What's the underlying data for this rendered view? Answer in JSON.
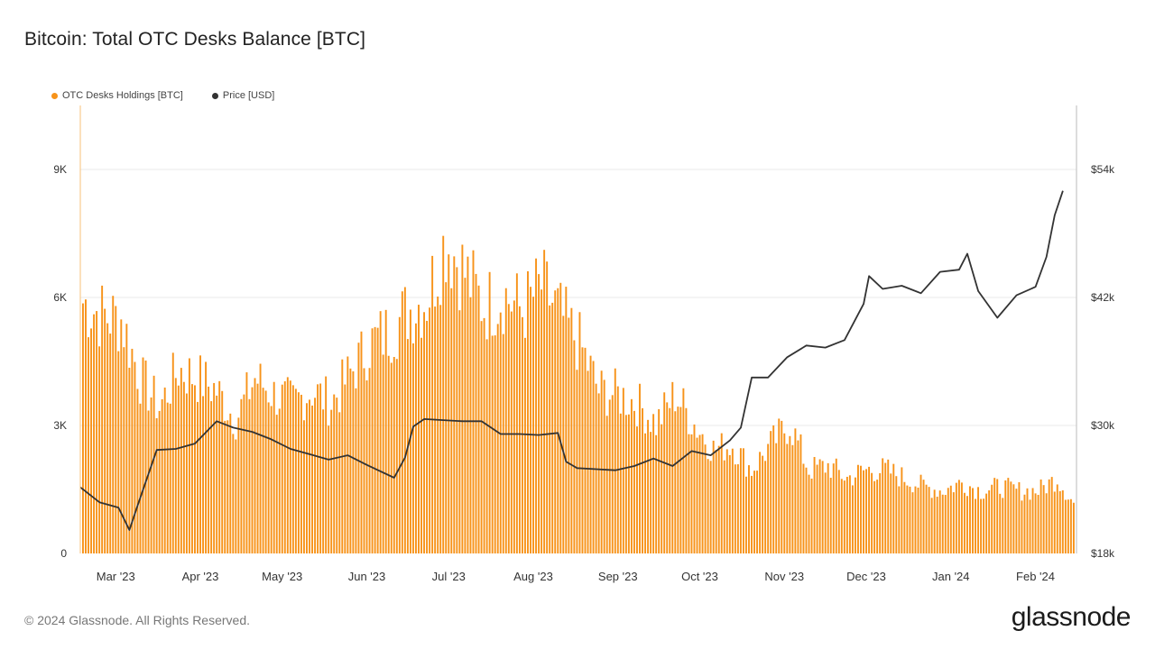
{
  "title": "Bitcoin: Total OTC Desks Balance [BTC]",
  "footer": "© 2024 Glassnode. All Rights Reserved.",
  "brand": "glassnode",
  "colors": {
    "holdings": "#F7931A",
    "price": "#333333",
    "grid": "#e9e9e9"
  },
  "chart_data": {
    "type": "bar",
    "title": "Bitcoin: Total OTC Desks Balance [BTC]",
    "legend_placement": "top-left",
    "grid": true,
    "x_ticks": [
      "Mar '23",
      "Apr '23",
      "May '23",
      "Jun '23",
      "Jul '23",
      "Aug '23",
      "Sep '23",
      "Oct '23",
      "Nov '23",
      "Dec '23",
      "Jan '24",
      "Feb '24"
    ],
    "y_left": {
      "label": "",
      "range": [
        0,
        10500
      ],
      "ticks": [
        "0",
        "3K",
        "6K",
        "9K"
      ],
      "tick_values": [
        0,
        3000,
        6000,
        9000
      ]
    },
    "y_right": {
      "label": "",
      "range": [
        18000,
        60000
      ],
      "ticks": [
        "$18k",
        "$30k",
        "$42k",
        "$54k"
      ],
      "tick_values": [
        18000,
        30000,
        42000,
        54000
      ]
    },
    "series": [
      {
        "name": "OTC Desks Holdings [BTC]",
        "type": "bar",
        "axis": "left",
        "x": [
          "2023-02-20",
          "2023-02-27",
          "2023-03-06",
          "2023-03-13",
          "2023-03-20",
          "2023-03-27",
          "2023-04-03",
          "2023-04-10",
          "2023-04-17",
          "2023-04-24",
          "2023-05-01",
          "2023-05-08",
          "2023-05-15",
          "2023-05-22",
          "2023-05-29",
          "2023-06-05",
          "2023-06-12",
          "2023-06-19",
          "2023-06-26",
          "2023-07-03",
          "2023-07-10",
          "2023-07-17",
          "2023-07-24",
          "2023-07-31",
          "2023-08-07",
          "2023-08-14",
          "2023-08-21",
          "2023-08-28",
          "2023-09-04",
          "2023-09-11",
          "2023-09-18",
          "2023-09-25",
          "2023-10-02",
          "2023-10-09",
          "2023-10-16",
          "2023-10-23",
          "2023-10-30",
          "2023-11-06",
          "2023-11-13",
          "2023-11-20",
          "2023-11-27",
          "2023-12-04",
          "2023-12-11",
          "2023-12-18",
          "2023-12-25",
          "2024-01-01",
          "2024-01-08",
          "2024-01-15",
          "2024-01-22",
          "2024-01-29",
          "2024-02-05",
          "2024-02-12",
          "2024-02-19"
        ],
        "values": [
          6000,
          5700,
          5600,
          4200,
          3500,
          4400,
          4200,
          3900,
          3200,
          4200,
          3800,
          3600,
          3900,
          3600,
          4300,
          5000,
          5300,
          5800,
          6100,
          7500,
          6700,
          5900,
          6200,
          5800,
          6400,
          5700,
          5000,
          3900,
          3800,
          3600,
          3100,
          3800,
          3100,
          2500,
          2600,
          2000,
          2600,
          3100,
          2000,
          2100,
          1800,
          2000,
          2000,
          1800,
          1600,
          1500,
          1700,
          1500,
          1600,
          1500,
          1500,
          1800,
          1100
        ]
      },
      {
        "name": "Price [USD]",
        "type": "line",
        "axis": "right",
        "x": [
          "2023-02-20",
          "2023-02-27",
          "2023-03-06",
          "2023-03-10",
          "2023-03-13",
          "2023-03-20",
          "2023-03-27",
          "2023-04-03",
          "2023-04-11",
          "2023-04-17",
          "2023-04-24",
          "2023-05-01",
          "2023-05-08",
          "2023-05-15",
          "2023-05-22",
          "2023-05-29",
          "2023-06-05",
          "2023-06-15",
          "2023-06-19",
          "2023-06-22",
          "2023-06-26",
          "2023-07-03",
          "2023-07-10",
          "2023-07-17",
          "2023-07-24",
          "2023-07-31",
          "2023-08-07",
          "2023-08-14",
          "2023-08-17",
          "2023-08-21",
          "2023-08-28",
          "2023-09-04",
          "2023-09-11",
          "2023-09-18",
          "2023-09-25",
          "2023-10-02",
          "2023-10-09",
          "2023-10-16",
          "2023-10-20",
          "2023-10-24",
          "2023-10-30",
          "2023-11-06",
          "2023-11-13",
          "2023-11-20",
          "2023-11-27",
          "2023-12-04",
          "2023-12-06",
          "2023-12-11",
          "2023-12-18",
          "2023-12-25",
          "2024-01-01",
          "2024-01-08",
          "2024-01-11",
          "2024-01-15",
          "2024-01-22",
          "2024-01-29",
          "2024-02-05",
          "2024-02-09",
          "2024-02-12",
          "2024-02-15"
        ],
        "values": [
          24200,
          22800,
          22300,
          20200,
          22500,
          27700,
          27800,
          28300,
          30400,
          29800,
          29400,
          28700,
          27800,
          27300,
          26800,
          27200,
          26300,
          25100,
          27000,
          29900,
          30600,
          30500,
          30400,
          30400,
          29200,
          29200,
          29100,
          29300,
          26600,
          26000,
          25900,
          25800,
          26200,
          26900,
          26200,
          27600,
          27200,
          28600,
          29800,
          34500,
          34500,
          36400,
          37500,
          37300,
          38000,
          41400,
          44000,
          42800,
          43100,
          42400,
          44400,
          44600,
          46100,
          42600,
          40100,
          42200,
          43000,
          45800,
          49700,
          52000
        ]
      }
    ]
  }
}
